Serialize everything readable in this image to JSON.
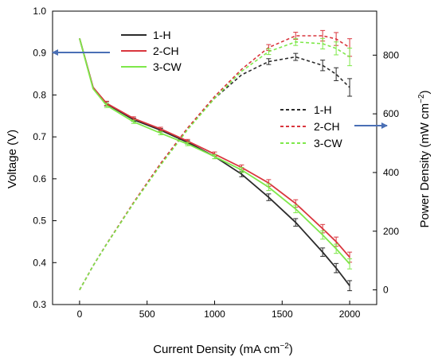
{
  "chart_data": {
    "type": "line",
    "xlabel": "Current Density (mA cm",
    "xlabel_sup": "−2",
    "xlabel_end": ")",
    "ylabel_left": "Voltage (V)",
    "ylabel_right": "Power Density (mW cm",
    "ylabel_right_sup": "−2",
    "ylabel_right_end": ")",
    "xlim": [
      -200,
      2200
    ],
    "ylim_left": [
      0.3,
      1.0
    ],
    "ylim_right": [
      -50,
      950
    ],
    "x_ticks": [
      "0",
      "500",
      "1000",
      "1500",
      "2000"
    ],
    "y_left_ticks": [
      "0.3",
      "0.4",
      "0.5",
      "0.6",
      "0.7",
      "0.8",
      "0.9",
      "1.0"
    ],
    "y_right_ticks": [
      "0",
      "200",
      "400",
      "600",
      "800"
    ],
    "grid": false,
    "voltage_legend": [
      "1-H",
      "2-CH",
      "3-CW"
    ],
    "power_legend": [
      "1-H",
      "2-CH",
      "3-CW"
    ],
    "x": [
      0,
      100,
      200,
      400,
      600,
      800,
      1000,
      1200,
      1400,
      1600,
      1800,
      1900,
      2000
    ],
    "voltage_series": [
      {
        "name": "1-H",
        "color": "#2b2b2b",
        "values": [
          0.935,
          0.818,
          0.779,
          0.741,
          0.716,
          0.687,
          0.653,
          0.611,
          0.556,
          0.496,
          0.425,
          0.387,
          0.345
        ]
      },
      {
        "name": "2-CH",
        "color": "#d9363e",
        "values": [
          0.935,
          0.818,
          0.78,
          0.744,
          0.719,
          0.69,
          0.659,
          0.627,
          0.59,
          0.541,
          0.481,
          0.45,
          0.413
        ]
      },
      {
        "name": "3-CW",
        "color": "#7ee84a",
        "values": [
          0.935,
          0.815,
          0.775,
          0.736,
          0.709,
          0.683,
          0.653,
          0.621,
          0.58,
          0.528,
          0.466,
          0.433,
          0.397
        ]
      }
    ],
    "power_series": [
      {
        "name": "1-H",
        "color": "#2b2b2b",
        "values": [
          0,
          82,
          156,
          296,
          430,
          550,
          653,
          733,
          778,
          794,
          765,
          735,
          690
        ]
      },
      {
        "name": "2-CH",
        "color": "#d9363e",
        "values": [
          0,
          82,
          156,
          298,
          431,
          552,
          659,
          752,
          826,
          866,
          866,
          855,
          826
        ]
      },
      {
        "name": "3-CW",
        "color": "#7ee84a",
        "values": [
          0,
          82,
          155,
          295,
          425,
          546,
          653,
          745,
          812,
          845,
          839,
          823,
          794
        ]
      }
    ],
    "voltage_error": [
      0,
      0,
      0.005,
      0.004,
      0.004,
      0.004,
      0.005,
      0.006,
      0.008,
      0.009,
      0.01,
      0.011,
      0.012
    ],
    "power_error": [
      0,
      0,
      0,
      0,
      0,
      0,
      0,
      0,
      10,
      12,
      18,
      22,
      30
    ],
    "annotations": [
      {
        "type": "arrow",
        "direction": "left",
        "color": "#4a6fb5",
        "points_to": "left axis"
      },
      {
        "type": "arrow",
        "direction": "right",
        "color": "#4a6fb5",
        "points_to": "right axis"
      }
    ]
  }
}
